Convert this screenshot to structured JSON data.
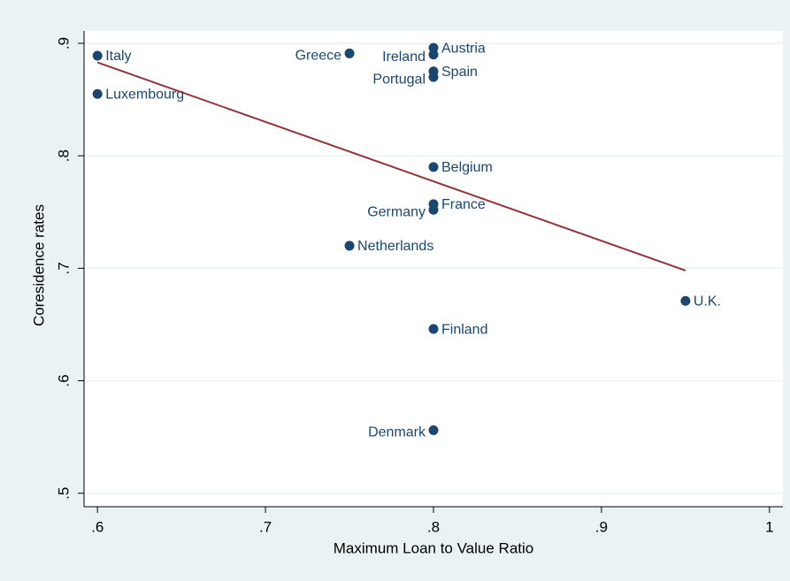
{
  "chart_data": {
    "type": "scatter",
    "x_label": "Maximum Loan to Value Ratio",
    "y_label": "Coresidence rates",
    "labels": [
      "Italy",
      "Luxembourg",
      "Greece",
      "Austria",
      "Ireland",
      "Spain",
      "Portugal",
      "Belgium",
      "France",
      "Germany",
      "Netherlands",
      "U.K.",
      "Finland",
      "Denmark"
    ],
    "x": [
      0.6,
      0.6,
      0.75,
      0.8,
      0.8,
      0.8,
      0.8,
      0.8,
      0.8,
      0.8,
      0.75,
      0.95,
      0.8,
      0.8
    ],
    "values": [
      0.889,
      0.855,
      0.891,
      0.896,
      0.89,
      0.875,
      0.87,
      0.79,
      0.757,
      0.752,
      0.72,
      0.671,
      0.646,
      0.556
    ],
    "color": "#1a476f",
    "fit": {
      "x": [
        0.6,
        0.95
      ],
      "values": [
        0.883,
        0.698
      ],
      "color": "#90353b"
    },
    "xlim": [
      0.592,
      1.008
    ],
    "ylim": [
      0.488,
      0.911
    ],
    "xticks": [
      {
        "value": 0.6,
        "label": ".6"
      },
      {
        "value": 0.7,
        "label": ".7"
      },
      {
        "value": 0.8,
        "label": ".8"
      },
      {
        "value": 0.9,
        "label": ".9"
      },
      1
    ],
    "yticks": [
      {
        "value": 0.5,
        "label": ".5"
      },
      {
        "value": 0.6,
        "label": ".6"
      },
      {
        "value": 0.7,
        "label": ".7"
      },
      {
        "value": 0.8,
        "label": ".8"
      },
      {
        "value": 0.9,
        "label": ".9"
      }
    ],
    "grid": true
  }
}
